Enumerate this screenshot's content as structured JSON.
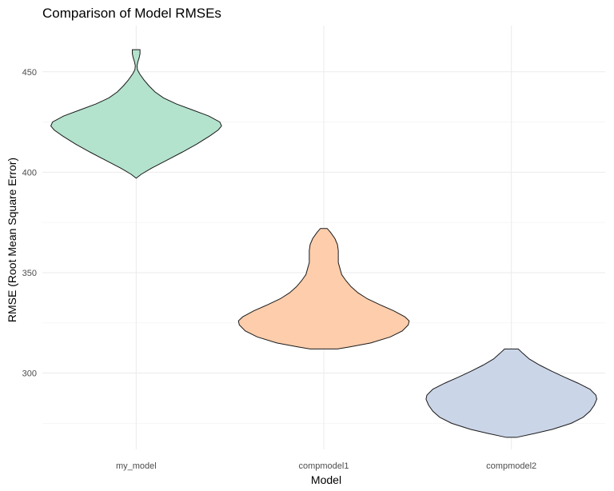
{
  "chart_data": {
    "type": "violin",
    "title": "Comparison of Model RMSEs",
    "xlabel": "Model",
    "ylabel": "RMSE (Root Mean Square Error)",
    "categories": [
      "my_model",
      "compmodel1",
      "compmodel2"
    ],
    "ylim": [
      262,
      473
    ],
    "yticks": [
      300,
      350,
      400,
      450
    ],
    "grid": true,
    "legend": "none",
    "colors": [
      "#b3e2cd",
      "#fdcdac",
      "#cbd5e8"
    ],
    "series": [
      {
        "category": "my_model",
        "min": 397,
        "max": 461,
        "profile": [
          [
            397,
            0.0
          ],
          [
            399,
            0.06
          ],
          [
            402,
            0.18
          ],
          [
            406,
            0.36
          ],
          [
            410,
            0.54
          ],
          [
            414,
            0.71
          ],
          [
            418,
            0.86
          ],
          [
            421,
            0.96
          ],
          [
            423,
            1.0
          ],
          [
            425,
            0.98
          ],
          [
            428,
            0.85
          ],
          [
            431,
            0.66
          ],
          [
            434,
            0.47
          ],
          [
            437,
            0.32
          ],
          [
            440,
            0.22
          ],
          [
            443,
            0.15
          ],
          [
            446,
            0.09
          ],
          [
            449,
            0.04
          ],
          [
            451,
            0.015
          ],
          [
            453,
            0.01
          ],
          [
            455,
            0.02
          ],
          [
            457,
            0.035
          ],
          [
            459,
            0.045
          ],
          [
            461,
            0.045
          ]
        ]
      },
      {
        "category": "compmodel1",
        "min": 312,
        "max": 372,
        "profile": [
          [
            312,
            0.16
          ],
          [
            313,
            0.3
          ],
          [
            315,
            0.55
          ],
          [
            318,
            0.78
          ],
          [
            321,
            0.92
          ],
          [
            324,
            0.99
          ],
          [
            326,
            1.0
          ],
          [
            328,
            0.95
          ],
          [
            331,
            0.82
          ],
          [
            334,
            0.66
          ],
          [
            337,
            0.51
          ],
          [
            340,
            0.4
          ],
          [
            343,
            0.32
          ],
          [
            346,
            0.26
          ],
          [
            349,
            0.21
          ],
          [
            352,
            0.19
          ],
          [
            355,
            0.17
          ],
          [
            358,
            0.17
          ],
          [
            361,
            0.17
          ],
          [
            364,
            0.16
          ],
          [
            367,
            0.13
          ],
          [
            370,
            0.08
          ],
          [
            372,
            0.04
          ]
        ]
      },
      {
        "category": "compmodel2",
        "min": 268,
        "max": 312,
        "profile": [
          [
            268,
            0.06
          ],
          [
            270,
            0.28
          ],
          [
            272,
            0.48
          ],
          [
            275,
            0.7
          ],
          [
            278,
            0.84
          ],
          [
            281,
            0.92
          ],
          [
            284,
            0.97
          ],
          [
            287,
            1.0
          ],
          [
            289,
            0.99
          ],
          [
            292,
            0.92
          ],
          [
            295,
            0.78
          ],
          [
            298,
            0.62
          ],
          [
            301,
            0.47
          ],
          [
            304,
            0.33
          ],
          [
            307,
            0.21
          ],
          [
            310,
            0.13
          ],
          [
            312,
            0.08
          ]
        ]
      }
    ]
  }
}
